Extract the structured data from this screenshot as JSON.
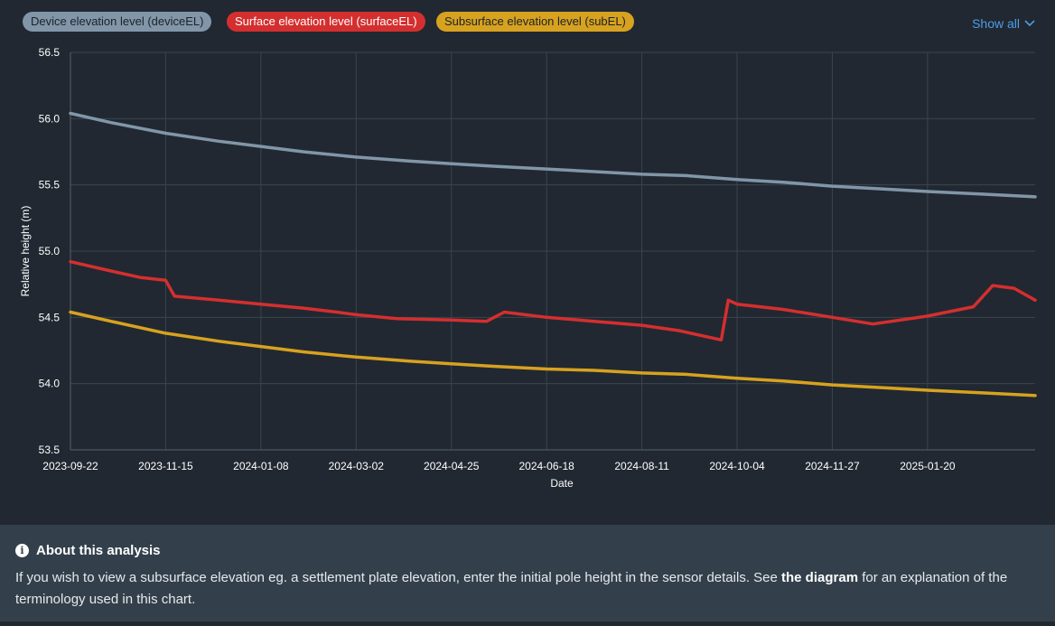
{
  "legend": {
    "items": [
      {
        "label": "Device elevation level (deviceEL)",
        "color": "#8196a8"
      },
      {
        "label": "Surface elevation level (surfaceEL)",
        "color": "#d42f2f"
      },
      {
        "label": "Subsurface elevation level (subEL)",
        "color": "#d7a21f"
      }
    ],
    "show_all_label": "Show all"
  },
  "chart_data": {
    "type": "line",
    "title": "",
    "xlabel": "Date",
    "ylabel": "Relative height (m)",
    "ylim": [
      53.5,
      56.5
    ],
    "yticks": [
      "56.5",
      "56.0",
      "55.5",
      "55.0",
      "54.5",
      "54.0",
      "53.5"
    ],
    "xlim": [
      "2023-09-22",
      "2025-03-22"
    ],
    "xticks": [
      "2023-09-22",
      "2023-11-15",
      "2024-01-08",
      "2024-03-02",
      "2024-04-25",
      "2024-06-18",
      "2024-08-11",
      "2024-10-04",
      "2024-11-27",
      "2025-01-20"
    ],
    "grid": true,
    "series": [
      {
        "name": "Device elevation level (deviceEL)",
        "color": "#8196a8",
        "points": [
          [
            "2023-09-22",
            56.04
          ],
          [
            "2023-10-15",
            55.97
          ],
          [
            "2023-11-15",
            55.89
          ],
          [
            "2023-12-15",
            55.83
          ],
          [
            "2024-01-08",
            55.79
          ],
          [
            "2024-02-01",
            55.75
          ],
          [
            "2024-03-02",
            55.71
          ],
          [
            "2024-04-01",
            55.68
          ],
          [
            "2024-04-25",
            55.66
          ],
          [
            "2024-05-20",
            55.64
          ],
          [
            "2024-06-18",
            55.62
          ],
          [
            "2024-07-15",
            55.6
          ],
          [
            "2024-08-11",
            55.58
          ],
          [
            "2024-09-05",
            55.57
          ],
          [
            "2024-10-04",
            55.54
          ],
          [
            "2024-10-30",
            55.52
          ],
          [
            "2024-11-27",
            55.49
          ],
          [
            "2024-12-25",
            55.47
          ],
          [
            "2025-01-20",
            55.45
          ],
          [
            "2025-02-20",
            55.43
          ],
          [
            "2025-03-22",
            55.41
          ]
        ]
      },
      {
        "name": "Surface elevation level (surfaceEL)",
        "color": "#d42f2f",
        "points": [
          [
            "2023-09-22",
            54.92
          ],
          [
            "2023-10-15",
            54.85
          ],
          [
            "2023-11-01",
            54.8
          ],
          [
            "2023-11-15",
            54.78
          ],
          [
            "2023-11-20",
            54.66
          ],
          [
            "2023-12-15",
            54.63
          ],
          [
            "2024-01-08",
            54.6
          ],
          [
            "2024-02-01",
            54.57
          ],
          [
            "2024-02-20",
            54.54
          ],
          [
            "2024-03-02",
            54.52
          ],
          [
            "2024-03-25",
            54.49
          ],
          [
            "2024-04-25",
            54.48
          ],
          [
            "2024-05-15",
            54.47
          ],
          [
            "2024-05-25",
            54.54
          ],
          [
            "2024-06-18",
            54.5
          ],
          [
            "2024-07-15",
            54.47
          ],
          [
            "2024-08-11",
            54.44
          ],
          [
            "2024-09-01",
            54.4
          ],
          [
            "2024-09-25",
            54.33
          ],
          [
            "2024-09-29",
            54.63
          ],
          [
            "2024-10-04",
            54.6
          ],
          [
            "2024-10-30",
            54.56
          ],
          [
            "2024-11-27",
            54.5
          ],
          [
            "2024-12-20",
            54.45
          ],
          [
            "2025-01-20",
            54.51
          ],
          [
            "2025-02-15",
            54.58
          ],
          [
            "2025-02-26",
            54.74
          ],
          [
            "2025-03-10",
            54.72
          ],
          [
            "2025-03-22",
            54.63
          ]
        ]
      },
      {
        "name": "Subsurface elevation level (subEL)",
        "color": "#d7a21f",
        "points": [
          [
            "2023-09-22",
            54.54
          ],
          [
            "2023-10-15",
            54.47
          ],
          [
            "2023-11-15",
            54.38
          ],
          [
            "2023-12-15",
            54.32
          ],
          [
            "2024-01-08",
            54.28
          ],
          [
            "2024-02-01",
            54.24
          ],
          [
            "2024-03-02",
            54.2
          ],
          [
            "2024-04-01",
            54.17
          ],
          [
            "2024-04-25",
            54.15
          ],
          [
            "2024-05-20",
            54.13
          ],
          [
            "2024-06-18",
            54.11
          ],
          [
            "2024-07-15",
            54.1
          ],
          [
            "2024-08-11",
            54.08
          ],
          [
            "2024-09-05",
            54.07
          ],
          [
            "2024-10-04",
            54.04
          ],
          [
            "2024-10-30",
            54.02
          ],
          [
            "2024-11-27",
            53.99
          ],
          [
            "2024-12-25",
            53.97
          ],
          [
            "2025-01-20",
            53.95
          ],
          [
            "2025-02-20",
            53.93
          ],
          [
            "2025-03-22",
            53.91
          ]
        ]
      }
    ]
  },
  "about": {
    "title": "About this analysis",
    "text_before": "If you wish to view a subsurface elevation eg. a settlement plate elevation, enter the initial pole height in the sensor details. See ",
    "link_text": "the diagram",
    "text_after": " for an explanation of the terminology used in this chart."
  }
}
